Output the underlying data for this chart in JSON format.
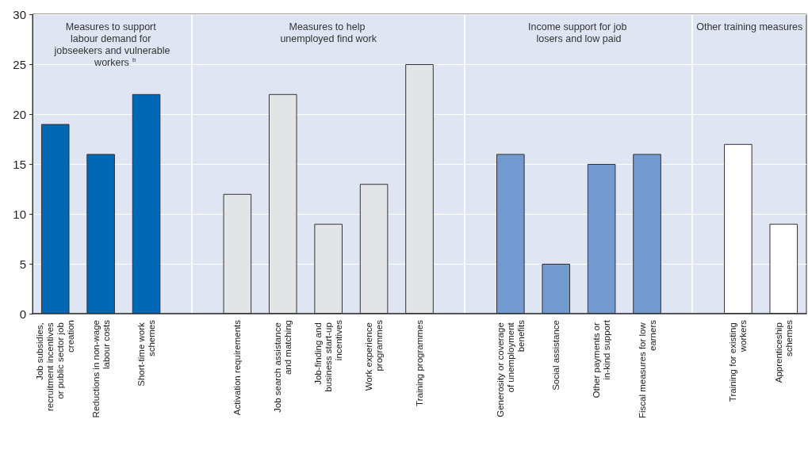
{
  "chart_data": {
    "type": "bar",
    "categories": [
      "Job subsidies, recruitment incentives or public sector job creation",
      "Reductions in non-wage labour costs",
      "Short-time work schemes",
      null,
      "Activation requirements",
      "Job search assistance and matching",
      "Job-finding and business start-up incentives",
      "Work experience programmes",
      "Training programmes",
      null,
      "Generosity or coverage of unemployment benefits",
      "Social assistance",
      "Other payments or in-kind support",
      "Fiscal measures for low earners",
      null,
      "Training for existing workers",
      "Apprenticeship schemes"
    ],
    "values": [
      19,
      16,
      22,
      null,
      12,
      22,
      9,
      13,
      25,
      null,
      16,
      5,
      15,
      16,
      null,
      17,
      9
    ],
    "colors": [
      "#0068b5",
      "#0068b5",
      "#0068b5",
      null,
      "#e3e4e6",
      "#e3e4e6",
      "#e3e4e6",
      "#e3e4e6",
      "#e3e4e6",
      null,
      "#729acf",
      "#729acf",
      "#729acf",
      "#729acf",
      null,
      "#ffffff",
      "#ffffff"
    ],
    "ylim": [
      0,
      30
    ],
    "yticks": [
      0,
      5,
      10,
      15,
      20,
      25,
      30
    ],
    "grid": "y",
    "annotations": [
      "Measures to support labour demand for jobseekers and vulnerable workers$^{b}$",
      "Measures to help unemployed find work",
      "Income support for job losers and low paid",
      "Other training measures"
    ]
  }
}
